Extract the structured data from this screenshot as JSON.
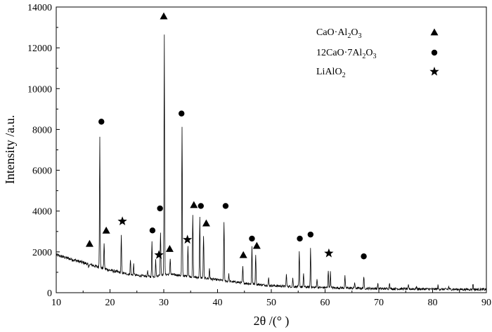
{
  "chart_data": {
    "type": "line",
    "xlabel": "2θ /(° )",
    "ylabel": "Intensity /a.u.",
    "xlim": [
      10,
      90
    ],
    "ylim": [
      0,
      14000
    ],
    "x_ticks": [
      10,
      20,
      30,
      40,
      50,
      60,
      70,
      80,
      90
    ],
    "y_ticks": [
      0,
      2000,
      4000,
      6000,
      8000,
      10000,
      12000,
      14000
    ],
    "grid": false,
    "legend_position": "top-right",
    "legend": [
      {
        "label_main": "CaO·Al",
        "sub1": "2",
        "mid": "O",
        "sub2": "3",
        "suffix": "",
        "marker": "triangle"
      },
      {
        "label_main": "12CaO·7Al",
        "sub1": "2",
        "mid": "O",
        "sub2": "3",
        "suffix": "",
        "marker": "circle"
      },
      {
        "label_main": "LiAlO",
        "sub1": "2",
        "mid": "",
        "sub2": "",
        "suffix": "",
        "marker": "star"
      }
    ],
    "background_baseline": [
      [
        10.0,
        1850
      ],
      [
        12,
        1700
      ],
      [
        14,
        1550
      ],
      [
        16,
        1400
      ],
      [
        18,
        1250
      ],
      [
        20,
        1100
      ],
      [
        22,
        980
      ],
      [
        24,
        880
      ],
      [
        26,
        820
      ],
      [
        28,
        780
      ],
      [
        30,
        900
      ],
      [
        32,
        880
      ],
      [
        34,
        820
      ],
      [
        36,
        760
      ],
      [
        38,
        700
      ],
      [
        40,
        630
      ],
      [
        42,
        560
      ],
      [
        44,
        500
      ],
      [
        46,
        440
      ],
      [
        48,
        390
      ],
      [
        50,
        350
      ],
      [
        52,
        320
      ],
      [
        54,
        300
      ],
      [
        56,
        280
      ],
      [
        58,
        260
      ],
      [
        60,
        250
      ],
      [
        62,
        240
      ],
      [
        64,
        230
      ],
      [
        66,
        220
      ],
      [
        68,
        210
      ],
      [
        70,
        200
      ],
      [
        72,
        195
      ],
      [
        74,
        190
      ],
      [
        76,
        185
      ],
      [
        78,
        180
      ],
      [
        80,
        175
      ],
      [
        82,
        170
      ],
      [
        84,
        165
      ],
      [
        86,
        160
      ],
      [
        88,
        160
      ],
      [
        90,
        160
      ]
    ],
    "peaks": [
      {
        "x": 16.0,
        "y": 1200
      },
      {
        "x": 18.1,
        "y": 7700
      },
      {
        "x": 18.9,
        "y": 2400
      },
      {
        "x": 22.1,
        "y": 2800
      },
      {
        "x": 23.8,
        "y": 1600
      },
      {
        "x": 24.4,
        "y": 1400
      },
      {
        "x": 27.0,
        "y": 1100
      },
      {
        "x": 27.8,
        "y": 2500
      },
      {
        "x": 28.5,
        "y": 1600
      },
      {
        "x": 29.4,
        "y": 3000
      },
      {
        "x": 30.1,
        "y": 12700
      },
      {
        "x": 31.2,
        "y": 1700
      },
      {
        "x": 33.4,
        "y": 8100
      },
      {
        "x": 34.5,
        "y": 2300
      },
      {
        "x": 35.4,
        "y": 3800
      },
      {
        "x": 36.7,
        "y": 3700
      },
      {
        "x": 37.4,
        "y": 2800
      },
      {
        "x": 38.5,
        "y": 1200
      },
      {
        "x": 41.2,
        "y": 3500
      },
      {
        "x": 42.1,
        "y": 900
      },
      {
        "x": 44.7,
        "y": 1300
      },
      {
        "x": 46.4,
        "y": 2300
      },
      {
        "x": 47.1,
        "y": 1900
      },
      {
        "x": 49.5,
        "y": 700
      },
      {
        "x": 52.8,
        "y": 900
      },
      {
        "x": 54.0,
        "y": 700
      },
      {
        "x": 55.2,
        "y": 2000
      },
      {
        "x": 56.0,
        "y": 900
      },
      {
        "x": 57.3,
        "y": 2200
      },
      {
        "x": 58.5,
        "y": 700
      },
      {
        "x": 60.6,
        "y": 1100
      },
      {
        "x": 61.0,
        "y": 1000
      },
      {
        "x": 63.7,
        "y": 800
      },
      {
        "x": 65.5,
        "y": 500
      },
      {
        "x": 67.2,
        "y": 800
      },
      {
        "x": 69.8,
        "y": 450
      },
      {
        "x": 72.0,
        "y": 500
      },
      {
        "x": 75.5,
        "y": 350
      },
      {
        "x": 77.0,
        "y": 300
      },
      {
        "x": 81.0,
        "y": 350
      },
      {
        "x": 83.0,
        "y": 300
      },
      {
        "x": 87.5,
        "y": 450
      }
    ],
    "markers": [
      {
        "type": "triangle",
        "x": 16.2,
        "y": 2400
      },
      {
        "type": "triangle",
        "x": 19.3,
        "y": 3050
      },
      {
        "type": "triangle",
        "x": 30.0,
        "y": 13550
      },
      {
        "type": "triangle",
        "x": 31.1,
        "y": 2150
      },
      {
        "type": "triangle",
        "x": 35.6,
        "y": 4300
      },
      {
        "type": "triangle",
        "x": 37.9,
        "y": 3400
      },
      {
        "type": "triangle",
        "x": 44.8,
        "y": 1850
      },
      {
        "type": "triangle",
        "x": 47.3,
        "y": 2300
      },
      {
        "type": "circle",
        "x": 18.4,
        "y": 8380
      },
      {
        "type": "circle",
        "x": 27.9,
        "y": 3050
      },
      {
        "type": "circle",
        "x": 29.3,
        "y": 4130
      },
      {
        "type": "circle",
        "x": 33.3,
        "y": 8780
      },
      {
        "type": "circle",
        "x": 36.9,
        "y": 4250
      },
      {
        "type": "circle",
        "x": 41.5,
        "y": 4250
      },
      {
        "type": "circle",
        "x": 46.4,
        "y": 2650
      },
      {
        "type": "circle",
        "x": 55.3,
        "y": 2650
      },
      {
        "type": "circle",
        "x": 57.3,
        "y": 2850
      },
      {
        "type": "circle",
        "x": 67.2,
        "y": 1780
      },
      {
        "type": "star",
        "x": 22.3,
        "y": 3500
      },
      {
        "type": "star",
        "x": 29.1,
        "y": 1850
      },
      {
        "type": "star",
        "x": 34.4,
        "y": 2600
      },
      {
        "type": "star",
        "x": 60.7,
        "y": 1930
      }
    ]
  }
}
